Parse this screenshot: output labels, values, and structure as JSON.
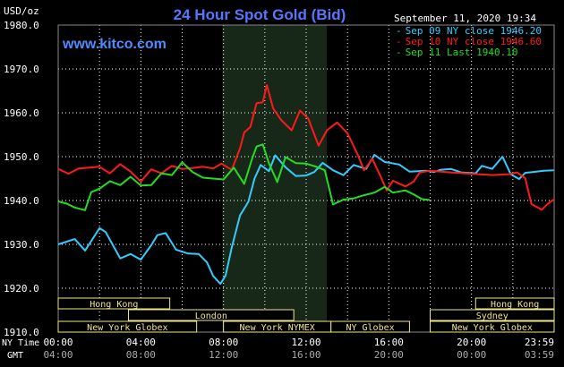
{
  "header": {
    "unit": "USD/oz",
    "title": "24 Hour Spot Gold (Bid)",
    "website": "www.kitco.com",
    "date": "September 11, 2020 19:34"
  },
  "legend": [
    {
      "label": "Sep 09 NY close 1946.20",
      "color": "#33ccff"
    },
    {
      "label": "Sep 10 NY close 1946.60",
      "color": "#ff1a1a"
    },
    {
      "label": "Sep 11 Last 1940.10",
      "color": "#22dd22"
    }
  ],
  "axis": {
    "ny_time_label": "NY Time",
    "gmt_label": "GMT",
    "ny_ticks": [
      "00:00",
      "04:00",
      "08:00",
      "12:00",
      "16:00",
      "20:00",
      "23:59"
    ],
    "gmt_ticks": [
      "04:00",
      "08:00",
      "12:00",
      "16:00",
      "20:00",
      "00:00",
      "03:59"
    ]
  },
  "markets": {
    "hong_kong": "Hong Kong",
    "london": "London",
    "new_york_globex": "New York Globex",
    "new_york_nymex": "New York NYMEX",
    "ny_globex": "NY Globex",
    "sydney": "Sydney"
  },
  "colors": {
    "background": "#000000",
    "grid": "#ffffff",
    "highlight": "#1a2a1a",
    "title": "#5577ff",
    "website": "#4f8cff",
    "session_bar": "#f0e68c"
  },
  "chart_data": {
    "type": "line",
    "xlabel": "NY Time",
    "ylabel": "USD/oz",
    "ylim": [
      1910,
      1980
    ],
    "yticks": [
      1910,
      1920,
      1930,
      1940,
      1950,
      1960,
      1970,
      1980
    ],
    "ytick_labels": [
      "1910.0",
      "1920.0",
      "1930.0",
      "1940.0",
      "1950.0",
      "1960.0",
      "1970.0",
      "1980.0"
    ],
    "xlim": [
      0,
      24
    ],
    "grid": true,
    "highlight_range": [
      7.95,
      13.0
    ],
    "series": [
      {
        "name": "Sep 09 NY close 1946.20",
        "color": "#33ccff",
        "points": [
          [
            0,
            1930
          ],
          [
            0.8,
            1931.2
          ],
          [
            1.3,
            1928.6
          ],
          [
            2.0,
            1933.7
          ],
          [
            2.3,
            1932.8
          ],
          [
            3.0,
            1926.8
          ],
          [
            3.5,
            1927.8
          ],
          [
            4.0,
            1926.5
          ],
          [
            4.5,
            1929.8
          ],
          [
            4.8,
            1932.1
          ],
          [
            5.2,
            1932.6
          ],
          [
            5.7,
            1928.8
          ],
          [
            6.3,
            1927.9
          ],
          [
            6.8,
            1927.8
          ],
          [
            7.2,
            1925.9
          ],
          [
            7.5,
            1922.8
          ],
          [
            7.85,
            1921
          ],
          [
            8.1,
            1922.9
          ],
          [
            8.4,
            1929.3
          ],
          [
            8.8,
            1936.6
          ],
          [
            9.2,
            1939.7
          ],
          [
            9.5,
            1945
          ],
          [
            9.8,
            1948.1
          ],
          [
            10.2,
            1946.7
          ],
          [
            10.5,
            1950.3
          ],
          [
            11.0,
            1947.6
          ],
          [
            11.5,
            1945.6
          ],
          [
            12.0,
            1945.7
          ],
          [
            12.4,
            1946.5
          ],
          [
            12.8,
            1948.6
          ],
          [
            13.3,
            1946.9
          ],
          [
            13.8,
            1945.8
          ],
          [
            14.3,
            1948.1
          ],
          [
            14.9,
            1947.2
          ],
          [
            15.3,
            1950.4
          ],
          [
            15.8,
            1948.8
          ],
          [
            16.5,
            1948.2
          ],
          [
            17.0,
            1946.6
          ],
          [
            17.8,
            1946.8
          ],
          [
            18.2,
            1946.5
          ],
          [
            18.5,
            1947
          ],
          [
            19.0,
            1947.2
          ],
          [
            19.5,
            1946.4
          ],
          [
            20.2,
            1946.2
          ],
          [
            20.5,
            1947.9
          ],
          [
            21.0,
            1947.2
          ],
          [
            21.5,
            1950
          ],
          [
            21.9,
            1946
          ],
          [
            22.3,
            1944.9
          ],
          [
            22.6,
            1946.3
          ],
          [
            23.0,
            1946.5
          ],
          [
            23.5,
            1946.8
          ],
          [
            23.98,
            1946.9
          ]
        ]
      },
      {
        "name": "Sep 10 NY close 1946.60",
        "color": "#ff1a1a",
        "points": [
          [
            0,
            1947.2
          ],
          [
            0.5,
            1946.1
          ],
          [
            1.0,
            1947.3
          ],
          [
            2.0,
            1947.7
          ],
          [
            2.5,
            1946.2
          ],
          [
            3.0,
            1948.3
          ],
          [
            3.5,
            1946.6
          ],
          [
            4.0,
            1944.3
          ],
          [
            4.5,
            1947.1
          ],
          [
            5.0,
            1946.2
          ],
          [
            5.5,
            1947.9
          ],
          [
            6.0,
            1947.2
          ],
          [
            6.5,
            1947.4
          ],
          [
            7.0,
            1947.7
          ],
          [
            7.5,
            1947.3
          ],
          [
            7.9,
            1948.4
          ],
          [
            8.4,
            1947
          ],
          [
            8.8,
            1951.9
          ],
          [
            9.0,
            1955.5
          ],
          [
            9.3,
            1956.8
          ],
          [
            9.6,
            1962.2
          ],
          [
            9.9,
            1962.4
          ],
          [
            10.1,
            1966.3
          ],
          [
            10.4,
            1961
          ],
          [
            10.8,
            1958.3
          ],
          [
            11.3,
            1956
          ],
          [
            11.7,
            1960.5
          ],
          [
            12.1,
            1958.7
          ],
          [
            12.6,
            1952.5
          ],
          [
            13.0,
            1956
          ],
          [
            13.5,
            1957.8
          ],
          [
            14.0,
            1955.3
          ],
          [
            14.5,
            1950.4
          ],
          [
            14.8,
            1946.9
          ],
          [
            15.2,
            1949.5
          ],
          [
            15.6,
            1945.5
          ],
          [
            15.9,
            1942.3
          ],
          [
            16.2,
            1944.5
          ],
          [
            16.8,
            1943.2
          ],
          [
            17.2,
            1944.3
          ],
          [
            17.5,
            1946.4
          ],
          [
            18.0,
            1946.8
          ],
          [
            19.0,
            1946.4
          ],
          [
            20.0,
            1946.1
          ],
          [
            21.0,
            1945.8
          ],
          [
            21.8,
            1946
          ],
          [
            22.2,
            1946.4
          ],
          [
            22.6,
            1945.1
          ],
          [
            22.9,
            1939.2
          ],
          [
            23.4,
            1937.9
          ],
          [
            23.7,
            1939.3
          ],
          [
            23.98,
            1940.2
          ]
        ]
      },
      {
        "name": "Sep 11 Last 1940.10",
        "color": "#22dd22",
        "points": [
          [
            0,
            1939.8
          ],
          [
            0.4,
            1939.3
          ],
          [
            0.8,
            1938.4
          ],
          [
            1.3,
            1937.8
          ],
          [
            1.6,
            1941.9
          ],
          [
            2.0,
            1942.7
          ],
          [
            2.5,
            1944.4
          ],
          [
            3.0,
            1943.5
          ],
          [
            3.5,
            1945.4
          ],
          [
            4.0,
            1943.4
          ],
          [
            4.5,
            1943.5
          ],
          [
            5.0,
            1946.2
          ],
          [
            5.5,
            1945.8
          ],
          [
            6.0,
            1948.7
          ],
          [
            6.5,
            1946.5
          ],
          [
            7.0,
            1945.2
          ],
          [
            7.5,
            1945
          ],
          [
            8.0,
            1944.8
          ],
          [
            8.5,
            1947.5
          ],
          [
            9.0,
            1943.8
          ],
          [
            9.4,
            1949.8
          ],
          [
            9.6,
            1952.3
          ],
          [
            9.9,
            1952.8
          ],
          [
            10.2,
            1948.5
          ],
          [
            10.6,
            1944.2
          ],
          [
            11.0,
            1949.9
          ],
          [
            11.5,
            1948.5
          ],
          [
            12.0,
            1948.4
          ],
          [
            12.5,
            1947.7
          ],
          [
            12.9,
            1946.9
          ],
          [
            13.3,
            1939.1
          ],
          [
            13.8,
            1940.2
          ],
          [
            14.3,
            1940.5
          ],
          [
            14.8,
            1941.2
          ],
          [
            15.3,
            1941.8
          ],
          [
            15.8,
            1943.1
          ],
          [
            16.2,
            1941.8
          ],
          [
            16.8,
            1942.3
          ],
          [
            17.2,
            1941.4
          ],
          [
            17.6,
            1940.3
          ],
          [
            18.0,
            1940.1
          ]
        ]
      }
    ]
  }
}
